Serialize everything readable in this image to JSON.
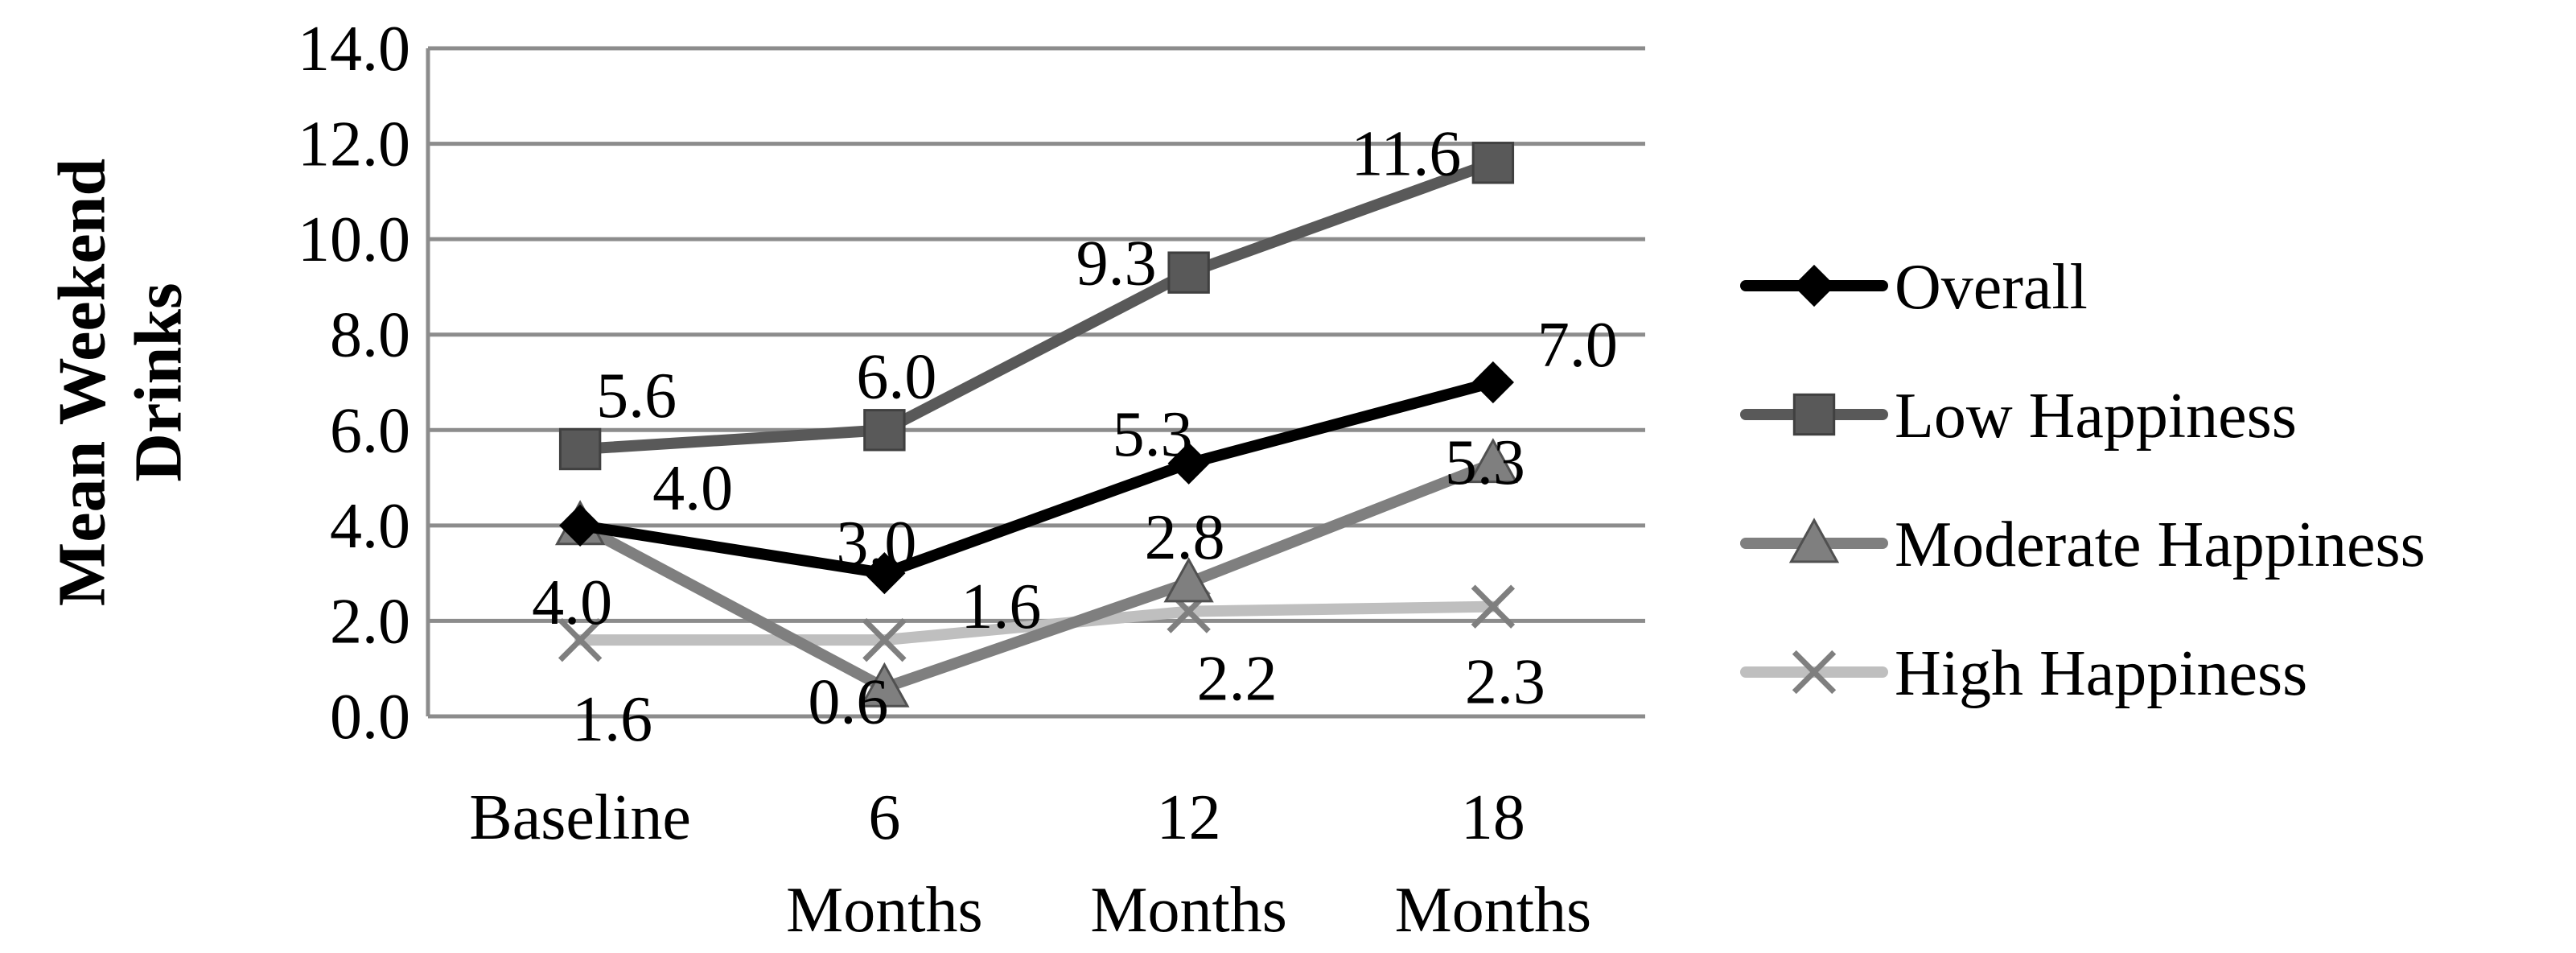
{
  "chart_data": {
    "type": "line",
    "title": "",
    "xlabel": "",
    "ylabel": "Mean Weekend Drinks",
    "ylabel_lines": [
      "Mean Weekend",
      "Drinks"
    ],
    "categories": [
      "Baseline",
      "6 Months",
      "12 Months",
      "18 Months"
    ],
    "category_lines": [
      [
        "Baseline"
      ],
      [
        "6",
        "Months"
      ],
      [
        "12",
        "Months"
      ],
      [
        "18",
        "Months"
      ]
    ],
    "ylim": [
      0,
      14
    ],
    "yticks": [
      "0.0",
      "2.0",
      "4.0",
      "6.0",
      "8.0",
      "10.0",
      "12.0",
      "14.0"
    ],
    "grid": true,
    "legend_position": "right",
    "series": [
      {
        "name": "Overall",
        "values": [
          4.0,
          3.0,
          5.3,
          7.0
        ],
        "labels": [
          "4.0",
          "3.0",
          "5.3",
          "7.0"
        ],
        "color": "#000000",
        "marker": "diamond"
      },
      {
        "name": "Low Happiness",
        "values": [
          5.6,
          6.0,
          9.3,
          11.6
        ],
        "labels": [
          "5.6",
          "6.0",
          "9.3",
          "11.6"
        ],
        "color": "#595959",
        "marker": "square"
      },
      {
        "name": "Moderate Happiness",
        "values": [
          4.0,
          0.6,
          2.8,
          5.3
        ],
        "labels": [
          "4.0",
          "0.6",
          "2.8",
          "5.3"
        ],
        "color": "#7f7f7f",
        "marker": "triangle"
      },
      {
        "name": "High Happiness",
        "values": [
          1.6,
          1.6,
          2.2,
          2.3
        ],
        "labels": [
          "1.6",
          "1.6",
          "2.2",
          "2.3"
        ],
        "color": "#bfbfbf",
        "marker": "x"
      }
    ]
  }
}
